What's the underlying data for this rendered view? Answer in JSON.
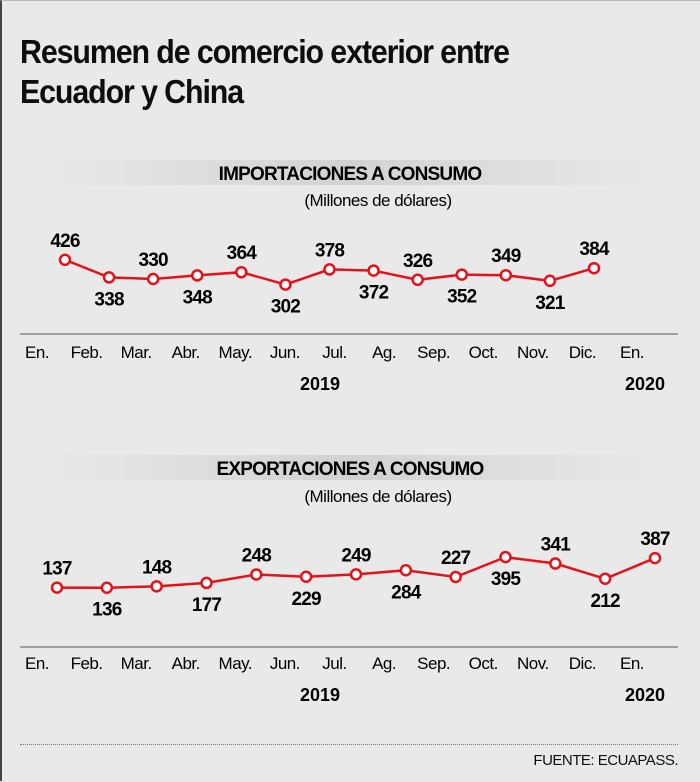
{
  "title": "Resumen de comercio exterior entre Ecuador y China",
  "title_lines": [
    "Resumen de comercio exterior entre",
    "Ecuador y China"
  ],
  "source": "FUENTE: ECUAPASS.",
  "colors": {
    "line": "#e3121b",
    "background": "#e9e9e9",
    "text": "#111111"
  },
  "chart_data": [
    {
      "type": "line",
      "title": "IMPORTACIONES A CONSUMO",
      "subtitle": "(Millones de dólares)",
      "categories": [
        "En.",
        "Feb.",
        "Mar.",
        "Abr.",
        "May.",
        "Jun.",
        "Jul.",
        "Ag.",
        "Sep.",
        "Oct.",
        "Nov.",
        "Dic.",
        "En."
      ],
      "years": [
        "2019",
        "2020"
      ],
      "values": [
        426,
        338,
        330,
        348,
        364,
        302,
        378,
        372,
        326,
        352,
        349,
        321,
        384
      ],
      "ylabel": "Millones de dólares",
      "ylim": [
        250,
        450
      ]
    },
    {
      "type": "line",
      "title": "EXPORTACIONES A CONSUMO",
      "subtitle": "(Millones de dólares)",
      "categories": [
        "En.",
        "Feb.",
        "Mar.",
        "Abr.",
        "May.",
        "Jun.",
        "Jul.",
        "Ag.",
        "Sep.",
        "Oct.",
        "Nov.",
        "Dic.",
        "En."
      ],
      "years": [
        "2019",
        "2020"
      ],
      "values": [
        137,
        136,
        148,
        177,
        248,
        229,
        249,
        284,
        227,
        395,
        341,
        212,
        387
      ],
      "ylabel": "Millones de dólares",
      "ylim": [
        100,
        430
      ]
    }
  ]
}
